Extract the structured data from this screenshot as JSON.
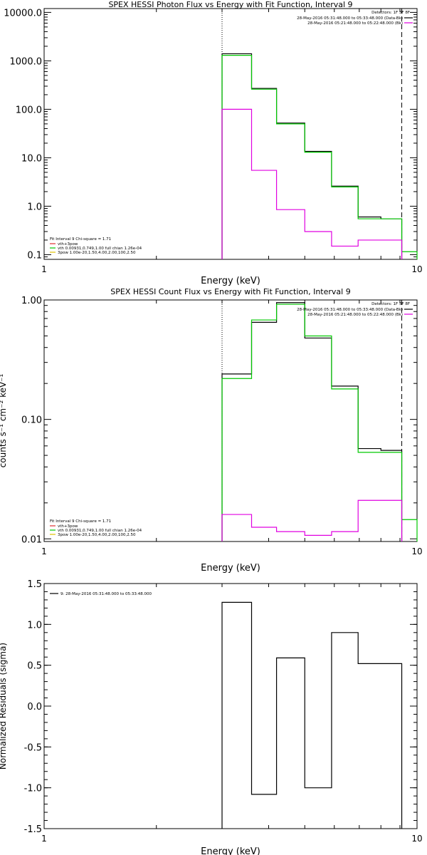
{
  "chart_data": [
    {
      "type": "line",
      "title": "SPEX HESSI Photon Flux vs Energy with Fit Function, Interval 9",
      "xlabel": "Energy (keV)",
      "ylabel": "",
      "xscale": "log",
      "yscale": "log",
      "xlim": [
        1,
        10
      ],
      "ylim": [
        0.08,
        12000
      ],
      "x_ticks": [
        {
          "v": 1,
          "label": "1"
        },
        {
          "v": 10,
          "label": "10"
        }
      ],
      "y_ticks": [
        {
          "v": 0.1,
          "label": "0.1"
        },
        {
          "v": 1,
          "label": "1.0"
        },
        {
          "v": 10,
          "label": "10.0"
        },
        {
          "v": 100,
          "label": "100.0"
        },
        {
          "v": 1000,
          "label": "1000.0"
        },
        {
          "v": 10000,
          "label": "10000.0"
        }
      ],
      "vlines": [
        {
          "x": 3.0,
          "style": "dotted"
        },
        {
          "x": 9.1,
          "style": "dashed"
        }
      ],
      "legend_top": {
        "placement": "top-right",
        "header": "Detectors: 1F 3F 8F",
        "items": [
          {
            "label": "28-May-2016 05:31:48.000 to 05:33:48.000 (Data-Bk)",
            "color": "#000000"
          },
          {
            "label": "28-May-2016 05:21:48.000 to 05:22:48.000 (Bk)",
            "color": "#e000e0"
          }
        ]
      },
      "legend_bottom": {
        "placement": "bottom-left",
        "header": "Fit Interval 9   Chi-square = 1.71",
        "items": [
          {
            "label": "vth+3pow",
            "color": "#e03030"
          },
          {
            "label": "vth 0.00931,0.749,1.00  full chian 1.26e-04",
            "color": "#00c800"
          },
          {
            "label": "3pow 1.00e-20,1.50,4.00,2.00,100,2.50",
            "color": "#e0c000"
          }
        ]
      },
      "series": [
        {
          "color": "#000000",
          "edges": [
            3.0,
            3.6,
            4.2,
            5.0,
            5.9,
            6.95,
            8.0,
            9.1
          ],
          "values": [
            1400,
            270,
            52,
            13.5,
            2.6,
            0.6,
            0.55
          ]
        },
        {
          "color": "#00c800",
          "edges": [
            3.0,
            3.6,
            4.2,
            5.0,
            5.9,
            6.95,
            8.0,
            9.1,
            10
          ],
          "values": [
            1300,
            260,
            50,
            13,
            2.5,
            0.55,
            0.55,
            0.115
          ]
        },
        {
          "color": "#e000e0",
          "edges": [
            3.0,
            3.6,
            4.2,
            5.0,
            5.9,
            6.95,
            8.0,
            9.1
          ],
          "values": [
            100,
            5.5,
            0.85,
            0.3,
            0.15,
            0.2,
            0.2
          ]
        }
      ]
    },
    {
      "type": "line",
      "title": "SPEX HESSI Count Flux vs Energy with Fit Function, Interval 9",
      "xlabel": "Energy (keV)",
      "ylabel": "counts s⁻¹ cm⁻² keV⁻¹",
      "xscale": "log",
      "yscale": "log",
      "xlim": [
        1,
        10
      ],
      "ylim": [
        0.0095,
        1.0
      ],
      "x_ticks": [
        {
          "v": 1,
          "label": "1"
        },
        {
          "v": 10,
          "label": "10"
        }
      ],
      "y_ticks": [
        {
          "v": 0.01,
          "label": "0.01"
        },
        {
          "v": 0.1,
          "label": "0.10"
        },
        {
          "v": 1.0,
          "label": "1.00"
        }
      ],
      "vlines": [
        {
          "x": 3.0,
          "style": "dotted"
        },
        {
          "x": 9.1,
          "style": "dashed"
        }
      ],
      "legend_top": {
        "placement": "top-right",
        "header": "Detectors: 1F 3F 8F",
        "items": [
          {
            "label": "28-May-2016 05:31:48.000 to 05:33:48.000 (Data-Bk)",
            "color": "#000000"
          },
          {
            "label": "28-May-2016 05:21:48.000 to 05:22:48.000 (Bk)",
            "color": "#e000e0"
          }
        ]
      },
      "legend_bottom": {
        "placement": "bottom-left",
        "header": "Fit Interval 9   Chi-square = 1.71",
        "items": [
          {
            "label": "vth+3pow",
            "color": "#e03030"
          },
          {
            "label": "vth 0.00931,0.749,1.00  full chian 1.26e-04",
            "color": "#00c800"
          },
          {
            "label": "3pow 1.00e-20,1.50,4.00,2.00,100,2.50",
            "color": "#e0c000"
          }
        ]
      },
      "series": [
        {
          "color": "#000000",
          "edges": [
            3.0,
            3.6,
            4.2,
            5.0,
            5.9,
            6.95,
            8.0,
            9.1
          ],
          "values": [
            0.24,
            0.65,
            0.95,
            0.48,
            0.19,
            0.057,
            0.055
          ]
        },
        {
          "color": "#00c800",
          "edges": [
            3.0,
            3.6,
            4.2,
            5.0,
            5.9,
            6.95,
            8.0,
            9.1,
            10
          ],
          "values": [
            0.22,
            0.68,
            0.92,
            0.5,
            0.18,
            0.053,
            0.053,
            0.0145
          ]
        },
        {
          "color": "#e000e0",
          "edges": [
            3.0,
            3.6,
            4.2,
            5.0,
            5.9,
            6.95,
            8.0,
            9.1
          ],
          "values": [
            0.016,
            0.0125,
            0.0115,
            0.0107,
            0.0115,
            0.021,
            0.021
          ]
        }
      ]
    },
    {
      "type": "line",
      "title": "",
      "xlabel": "Energy (keV)",
      "ylabel": "Normalized Residuals (sigma)",
      "xscale": "log",
      "yscale": "linear",
      "xlim": [
        1,
        10
      ],
      "ylim": [
        -1.5,
        1.5
      ],
      "x_ticks": [
        {
          "v": 1,
          "label": "1"
        },
        {
          "v": 10,
          "label": "10"
        }
      ],
      "y_ticks": [
        {
          "v": -1.5,
          "label": "-1.5"
        },
        {
          "v": -1.0,
          "label": "-1.0"
        },
        {
          "v": -0.5,
          "label": "-0.5"
        },
        {
          "v": 0.0,
          "label": "0.0"
        },
        {
          "v": 0.5,
          "label": "0.5"
        },
        {
          "v": 1.0,
          "label": "1.0"
        },
        {
          "v": 1.5,
          "label": "1.5"
        }
      ],
      "vlines": [],
      "legend_top": {
        "placement": "top-left",
        "header": "",
        "items": [
          {
            "label": "9: 28-May-2016 05:31:48.000 to 05:33:48.000",
            "color": "#000000"
          }
        ]
      },
      "legend_bottom": null,
      "series": [
        {
          "color": "#000000",
          "edges": [
            3.0,
            3.6,
            4.2,
            5.0,
            5.9,
            6.95,
            8.0,
            9.1
          ],
          "values": [
            1.27,
            -1.08,
            0.59,
            -1.0,
            0.9,
            0.52,
            0.52
          ]
        }
      ]
    }
  ]
}
